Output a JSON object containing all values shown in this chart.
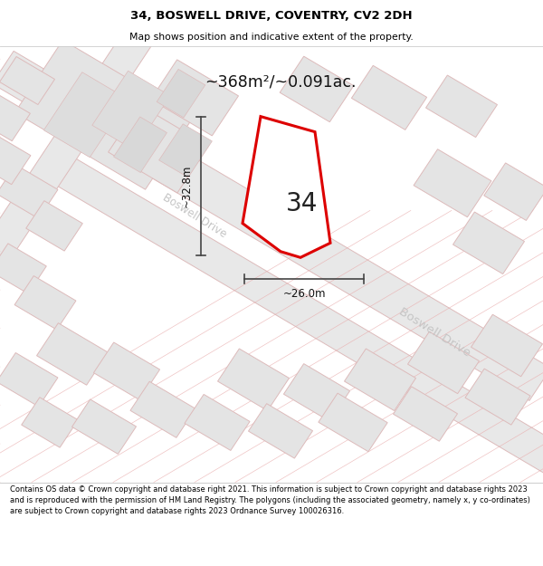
{
  "title": "34, BOSWELL DRIVE, COVENTRY, CV2 2DH",
  "subtitle": "Map shows position and indicative extent of the property.",
  "area_label": "~368m²/~0.091ac.",
  "width_label": "~26.0m",
  "height_label": "~32.8m",
  "property_number": "34",
  "street_label1": "Boswell Drive",
  "street_label2": "Boswell Drive",
  "footer": "Contains OS data © Crown copyright and database right 2021. This information is subject to Crown copyright and database rights 2023 and is reproduced with the permission of HM Land Registry. The polygons (including the associated geometry, namely x, y co-ordinates) are subject to Crown copyright and database rights 2023 Ordnance Survey 100026316.",
  "bg_color": "#ffffff",
  "building_fill": "#e8e8e8",
  "building_edge": "#ddbbbb",
  "road_fill": "#eeeeee",
  "road_edge": "#ddbbbb",
  "plot_edge": "#cc0000",
  "plot_fill": "#ffffff",
  "arrow_color": "#444444",
  "title_color": "#000000",
  "footer_color": "#000000",
  "street_text_color": "#bbbbbb"
}
